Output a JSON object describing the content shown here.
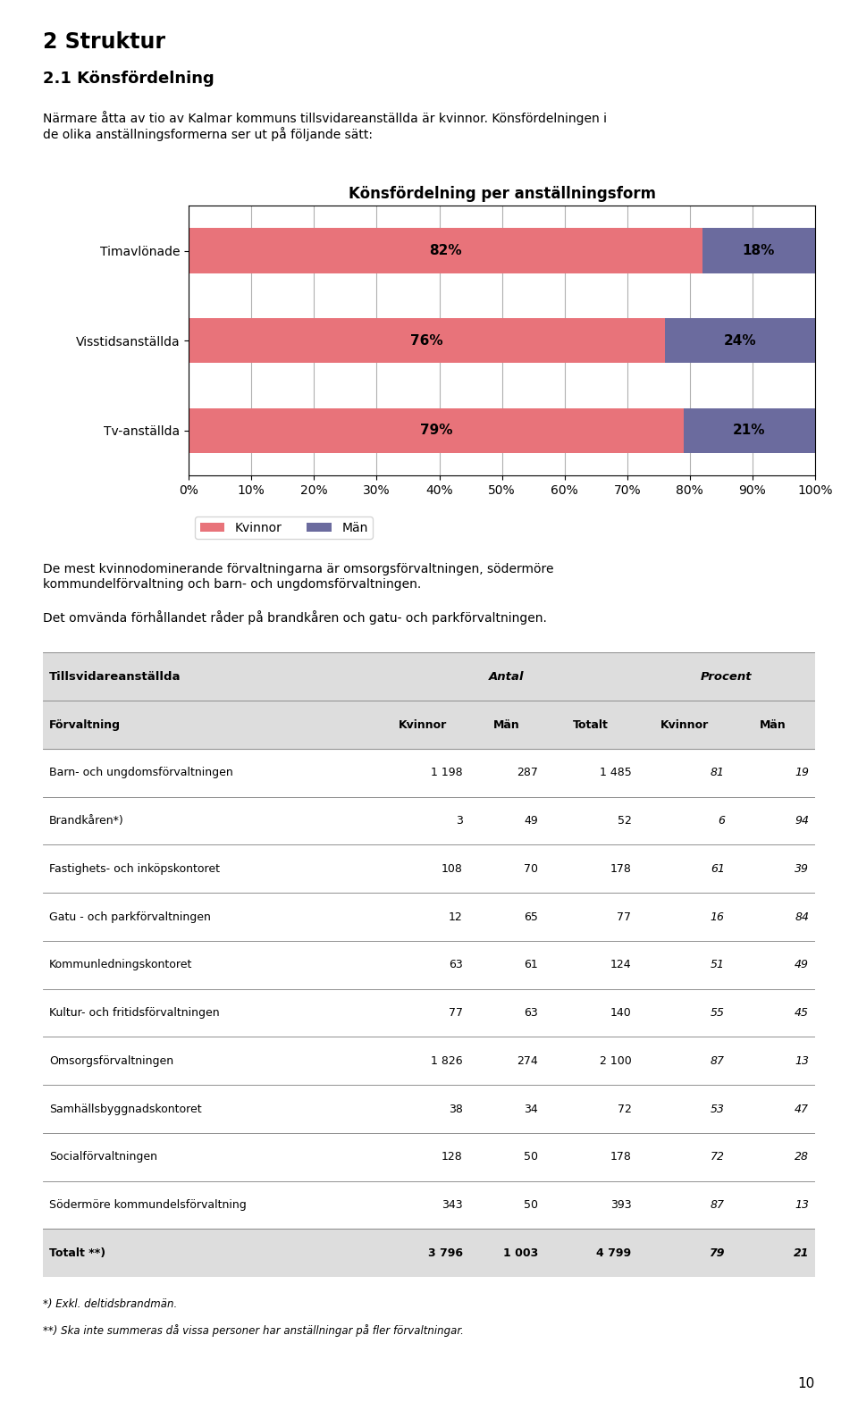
{
  "page_title": "2 Struktur",
  "section_title": "2.1 Könsfördelning",
  "intro_text": "Närmare åtta av tio av Kalmar kommuns tillsvidareanställda är kvinnor. Könsfördelningen i\nde olika anställningsformerna ser ut på följande sätt:",
  "chart_data": {
    "type": "bar",
    "orientation": "horizontal",
    "stacked": true,
    "title": "Könsfördelning per anställningsform",
    "categories": [
      "Timavlönade",
      "Visstidsanställda",
      "Tv-anställda"
    ],
    "series": [
      {
        "name": "Kvinnor",
        "color": "#E8737A",
        "values": [
          82,
          76,
          79
        ],
        "value_labels": [
          "82%",
          "76%",
          "79%"
        ]
      },
      {
        "name": "Män",
        "color": "#6B6B9E",
        "values": [
          18,
          24,
          21
        ],
        "value_labels": [
          "18%",
          "24%",
          "21%"
        ]
      }
    ],
    "xlim": [
      0,
      100
    ],
    "xticks": [
      {
        "value": 0,
        "label": "0%"
      },
      {
        "value": 10,
        "label": "10%"
      },
      {
        "value": 20,
        "label": "20%"
      },
      {
        "value": 30,
        "label": "30%"
      },
      {
        "value": 40,
        "label": "40%"
      },
      {
        "value": 50,
        "label": "50%"
      },
      {
        "value": 60,
        "label": "60%"
      },
      {
        "value": 70,
        "label": "70%"
      },
      {
        "value": 80,
        "label": "80%"
      },
      {
        "value": 90,
        "label": "90%"
      },
      {
        "value": 100,
        "label": "100%"
      }
    ],
    "grid": true,
    "data_labels": true,
    "legend": "upper left"
  },
  "body_text": [
    "De mest kvinnodominerande förvaltningarna är omsorgsförvaltningen, södermöre\nkommundelförvaltning och barn- och ungdomsförvaltningen.",
    "Det omvända förhållandet råder på brandkåren och gatu- och parkförvaltningen."
  ],
  "table": {
    "column_groups": [
      {
        "label": "Tillsvidareanställda",
        "span": 1
      },
      {
        "label": "Antal",
        "span": 3
      },
      {
        "label": "Procent",
        "span": 2
      }
    ],
    "columns": [
      "Förvaltning",
      "Kvinnor",
      "Män",
      "Totalt",
      "Kvinnor",
      "Män"
    ],
    "rows": [
      [
        "Barn- och ungdomsförvaltningen",
        "1 198",
        "287",
        "1 485",
        "81",
        "19"
      ],
      [
        "Brandkåren*)",
        "3",
        "49",
        "52",
        "6",
        "94"
      ],
      [
        "Fastighets- och inköpskontoret",
        "108",
        "70",
        "178",
        "61",
        "39"
      ],
      [
        "Gatu - och parkförvaltningen",
        "12",
        "65",
        "77",
        "16",
        "84"
      ],
      [
        "Kommunledningskontoret",
        "63",
        "61",
        "124",
        "51",
        "49"
      ],
      [
        "Kultur- och fritidsförvaltningen",
        "77",
        "63",
        "140",
        "55",
        "45"
      ],
      [
        "Omsorgsförvaltningen",
        "1 826",
        "274",
        "2 100",
        "87",
        "13"
      ],
      [
        "Samhällsbyggnadskontoret",
        "38",
        "34",
        "72",
        "53",
        "47"
      ],
      [
        "Socialförvaltningen",
        "128",
        "50",
        "178",
        "72",
        "28"
      ],
      [
        "Södermöre kommundelsförvaltning",
        "343",
        "50",
        "393",
        "87",
        "13"
      ]
    ],
    "total": [
      "Totalt **)",
      "3 796",
      "1 003",
      "4 799",
      "79",
      "21"
    ]
  },
  "footnotes": [
    "*) Exkl. deltidsbrandmän.",
    "**) Ska inte summeras då vissa personer har anställningar på fler förvaltningar."
  ],
  "page_number": "10"
}
